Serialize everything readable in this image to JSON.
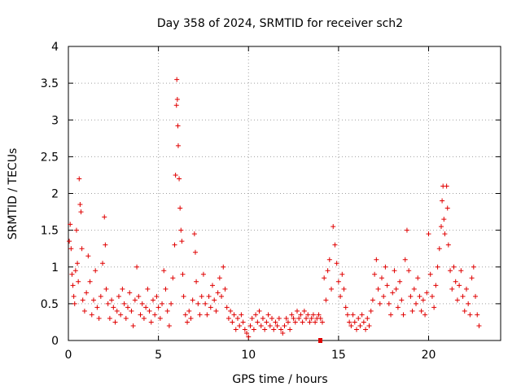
{
  "chart_data": {
    "type": "scatter",
    "title": "Day 358 of 2024, SRMTID for receiver sch2",
    "xlabel": "GPS time / hours",
    "ylabel": "SRMTID / TECUs",
    "xlim": [
      0,
      24
    ],
    "ylim": [
      0,
      4
    ],
    "xticks": [
      0,
      5,
      10,
      15,
      20
    ],
    "yticks": [
      0,
      0.5,
      1,
      1.5,
      2,
      2.5,
      3,
      3.5,
      4
    ],
    "grid": true,
    "marker": "plus",
    "color": "#e00000",
    "series": [
      {
        "name": "SRMTID",
        "points": [
          [
            0.05,
            1.35
          ],
          [
            0.1,
            1.58
          ],
          [
            0.15,
            1.25
          ],
          [
            0.2,
            0.9
          ],
          [
            0.25,
            0.75
          ],
          [
            0.3,
            0.6
          ],
          [
            0.35,
            0.5
          ],
          [
            0.4,
            0.95
          ],
          [
            0.45,
            1.5
          ],
          [
            0.5,
            1.05
          ],
          [
            0.55,
            0.8
          ],
          [
            0.6,
            2.2
          ],
          [
            0.65,
            1.85
          ],
          [
            0.7,
            1.75
          ],
          [
            0.75,
            1.25
          ],
          [
            0.8,
            0.55
          ],
          [
            0.9,
            0.4
          ],
          [
            1.0,
            0.65
          ],
          [
            1.1,
            1.15
          ],
          [
            1.2,
            0.8
          ],
          [
            1.3,
            0.35
          ],
          [
            1.4,
            0.55
          ],
          [
            1.5,
            0.95
          ],
          [
            1.6,
            0.45
          ],
          [
            1.7,
            0.3
          ],
          [
            1.8,
            0.6
          ],
          [
            1.9,
            1.05
          ],
          [
            2.0,
            1.68
          ],
          [
            2.05,
            1.3
          ],
          [
            2.1,
            0.7
          ],
          [
            2.2,
            0.5
          ],
          [
            2.3,
            0.3
          ],
          [
            2.4,
            0.55
          ],
          [
            2.5,
            0.45
          ],
          [
            2.6,
            0.25
          ],
          [
            2.7,
            0.4
          ],
          [
            2.8,
            0.6
          ],
          [
            2.9,
            0.35
          ],
          [
            3.0,
            0.7
          ],
          [
            3.1,
            0.5
          ],
          [
            3.2,
            0.3
          ],
          [
            3.3,
            0.45
          ],
          [
            3.4,
            0.65
          ],
          [
            3.5,
            0.4
          ],
          [
            3.6,
            0.2
          ],
          [
            3.7,
            0.55
          ],
          [
            3.8,
            1.0
          ],
          [
            3.9,
            0.6
          ],
          [
            4.0,
            0.35
          ],
          [
            4.1,
            0.5
          ],
          [
            4.2,
            0.3
          ],
          [
            4.3,
            0.45
          ],
          [
            4.4,
            0.7
          ],
          [
            4.5,
            0.4
          ],
          [
            4.6,
            0.25
          ],
          [
            4.7,
            0.55
          ],
          [
            4.8,
            0.35
          ],
          [
            4.9,
            0.6
          ],
          [
            5.0,
            0.45
          ],
          [
            5.1,
            0.3
          ],
          [
            5.2,
            0.5
          ],
          [
            5.3,
            0.95
          ],
          [
            5.4,
            0.7
          ],
          [
            5.5,
            0.4
          ],
          [
            5.6,
            0.2
          ],
          [
            5.7,
            0.5
          ],
          [
            5.8,
            0.85
          ],
          [
            5.9,
            1.3
          ],
          [
            5.95,
            2.25
          ],
          [
            6.0,
            3.2
          ],
          [
            6.02,
            3.55
          ],
          [
            6.05,
            3.28
          ],
          [
            6.08,
            2.92
          ],
          [
            6.1,
            2.65
          ],
          [
            6.15,
            2.2
          ],
          [
            6.2,
            1.8
          ],
          [
            6.25,
            1.5
          ],
          [
            6.3,
            1.35
          ],
          [
            6.35,
            0.9
          ],
          [
            6.4,
            0.6
          ],
          [
            6.5,
            0.35
          ],
          [
            6.6,
            0.25
          ],
          [
            6.7,
            0.4
          ],
          [
            6.8,
            0.3
          ],
          [
            6.9,
            0.55
          ],
          [
            7.0,
            1.45
          ],
          [
            7.05,
            1.2
          ],
          [
            7.1,
            0.8
          ],
          [
            7.2,
            0.5
          ],
          [
            7.3,
            0.35
          ],
          [
            7.4,
            0.6
          ],
          [
            7.5,
            0.9
          ],
          [
            7.6,
            0.5
          ],
          [
            7.7,
            0.35
          ],
          [
            7.8,
            0.6
          ],
          [
            7.9,
            0.45
          ],
          [
            8.0,
            0.75
          ],
          [
            8.1,
            0.55
          ],
          [
            8.2,
            0.4
          ],
          [
            8.3,
            0.65
          ],
          [
            8.4,
            0.85
          ],
          [
            8.5,
            0.6
          ],
          [
            8.6,
            1.0
          ],
          [
            8.7,
            0.7
          ],
          [
            8.8,
            0.45
          ],
          [
            8.9,
            0.3
          ],
          [
            9.0,
            0.4
          ],
          [
            9.1,
            0.25
          ],
          [
            9.2,
            0.35
          ],
          [
            9.3,
            0.15
          ],
          [
            9.4,
            0.3
          ],
          [
            9.5,
            0.2
          ],
          [
            9.6,
            0.35
          ],
          [
            9.7,
            0.25
          ],
          [
            9.8,
            0.15
          ],
          [
            9.9,
            0.1
          ],
          [
            10.0,
            0.05
          ],
          [
            10.1,
            0.2
          ],
          [
            10.2,
            0.3
          ],
          [
            10.3,
            0.15
          ],
          [
            10.4,
            0.35
          ],
          [
            10.5,
            0.25
          ],
          [
            10.6,
            0.4
          ],
          [
            10.7,
            0.2
          ],
          [
            10.8,
            0.3
          ],
          [
            10.9,
            0.15
          ],
          [
            11.0,
            0.25
          ],
          [
            11.1,
            0.35
          ],
          [
            11.2,
            0.2
          ],
          [
            11.3,
            0.3
          ],
          [
            11.4,
            0.15
          ],
          [
            11.5,
            0.25
          ],
          [
            11.6,
            0.2
          ],
          [
            11.7,
            0.3
          ],
          [
            11.8,
            0.15
          ],
          [
            11.9,
            0.1
          ],
          [
            12.0,
            0.2
          ],
          [
            12.1,
            0.3
          ],
          [
            12.2,
            0.25
          ],
          [
            12.3,
            0.15
          ],
          [
            12.4,
            0.35
          ],
          [
            12.5,
            0.3
          ],
          [
            12.6,
            0.25
          ],
          [
            12.7,
            0.4
          ],
          [
            12.8,
            0.3
          ],
          [
            12.9,
            0.35
          ],
          [
            13.0,
            0.25
          ],
          [
            13.1,
            0.4
          ],
          [
            13.2,
            0.3
          ],
          [
            13.3,
            0.35
          ],
          [
            13.4,
            0.25
          ],
          [
            13.5,
            0.3
          ],
          [
            13.6,
            0.35
          ],
          [
            13.7,
            0.25
          ],
          [
            13.8,
            0.3
          ],
          [
            13.9,
            0.35
          ],
          [
            14.0,
            0.3
          ],
          [
            14.1,
            0.25
          ],
          [
            14.2,
            0.85
          ],
          [
            14.3,
            0.55
          ],
          [
            14.4,
            0.95
          ],
          [
            14.5,
            1.1
          ],
          [
            14.6,
            0.7
          ],
          [
            14.7,
            1.55
          ],
          [
            14.8,
            1.3
          ],
          [
            14.9,
            1.05
          ],
          [
            15.0,
            0.8
          ],
          [
            15.1,
            0.6
          ],
          [
            15.2,
            0.9
          ],
          [
            15.3,
            0.7
          ],
          [
            15.4,
            0.45
          ],
          [
            15.5,
            0.35
          ],
          [
            15.6,
            0.25
          ],
          [
            15.7,
            0.2
          ],
          [
            15.8,
            0.35
          ],
          [
            15.9,
            0.25
          ],
          [
            16.0,
            0.15
          ],
          [
            16.1,
            0.3
          ],
          [
            16.2,
            0.2
          ],
          [
            16.3,
            0.35
          ],
          [
            16.4,
            0.25
          ],
          [
            16.5,
            0.15
          ],
          [
            16.6,
            0.3
          ],
          [
            16.7,
            0.2
          ],
          [
            16.8,
            0.4
          ],
          [
            16.9,
            0.55
          ],
          [
            17.0,
            0.9
          ],
          [
            17.1,
            1.1
          ],
          [
            17.2,
            0.7
          ],
          [
            17.3,
            0.5
          ],
          [
            17.4,
            0.85
          ],
          [
            17.5,
            0.6
          ],
          [
            17.6,
            1.0
          ],
          [
            17.7,
            0.75
          ],
          [
            17.8,
            0.5
          ],
          [
            17.9,
            0.35
          ],
          [
            18.0,
            0.65
          ],
          [
            18.1,
            0.95
          ],
          [
            18.2,
            0.7
          ],
          [
            18.3,
            0.45
          ],
          [
            18.4,
            0.8
          ],
          [
            18.5,
            0.55
          ],
          [
            18.6,
            0.35
          ],
          [
            18.7,
            1.1
          ],
          [
            18.8,
            1.5
          ],
          [
            18.9,
            0.95
          ],
          [
            19.0,
            0.6
          ],
          [
            19.1,
            0.4
          ],
          [
            19.2,
            0.7
          ],
          [
            19.3,
            0.5
          ],
          [
            19.4,
            0.85
          ],
          [
            19.5,
            0.6
          ],
          [
            19.6,
            0.4
          ],
          [
            19.7,
            0.55
          ],
          [
            19.8,
            0.35
          ],
          [
            19.9,
            0.65
          ],
          [
            20.0,
            1.45
          ],
          [
            20.1,
            0.9
          ],
          [
            20.2,
            0.6
          ],
          [
            20.3,
            0.45
          ],
          [
            20.4,
            0.75
          ],
          [
            20.5,
            1.0
          ],
          [
            20.6,
            1.25
          ],
          [
            20.7,
            1.55
          ],
          [
            20.75,
            1.9
          ],
          [
            20.8,
            2.1
          ],
          [
            20.85,
            1.65
          ],
          [
            20.9,
            1.45
          ],
          [
            21.0,
            2.1
          ],
          [
            21.05,
            1.8
          ],
          [
            21.1,
            1.3
          ],
          [
            21.2,
            0.95
          ],
          [
            21.3,
            0.7
          ],
          [
            21.4,
            1.0
          ],
          [
            21.5,
            0.8
          ],
          [
            21.6,
            0.55
          ],
          [
            21.7,
            0.75
          ],
          [
            21.8,
            0.95
          ],
          [
            21.9,
            0.6
          ],
          [
            22.0,
            0.4
          ],
          [
            22.1,
            0.7
          ],
          [
            22.2,
            0.5
          ],
          [
            22.3,
            0.35
          ],
          [
            22.4,
            0.85
          ],
          [
            22.5,
            1.0
          ],
          [
            22.6,
            0.6
          ],
          [
            22.7,
            0.35
          ],
          [
            22.8,
            0.2
          ]
        ]
      }
    ]
  }
}
